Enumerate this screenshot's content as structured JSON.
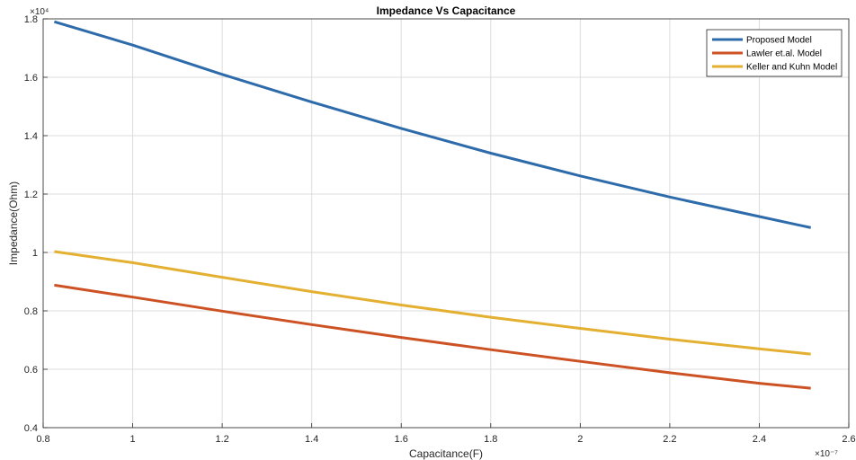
{
  "chart_data": {
    "type": "line",
    "title": "Impedance Vs Capacitance",
    "xlabel": "Capacitance(F)",
    "ylabel": "Impedance(Ohm)",
    "x_multiplier": "×10⁻⁷",
    "y_multiplier": "×10⁴",
    "xlim": [
      0.8,
      2.6
    ],
    "ylim": [
      0.4,
      1.8
    ],
    "x_ticks": [
      0.8,
      1.0,
      1.2,
      1.4,
      1.6,
      1.8,
      2.0,
      2.2,
      2.4,
      2.6
    ],
    "x_tick_labels": [
      "0.8",
      "1",
      "1.2",
      "1.4",
      "1.6",
      "1.8",
      "2",
      "2.2",
      "2.4",
      "2.6"
    ],
    "y_ticks": [
      0.4,
      0.6,
      0.8,
      1.0,
      1.2,
      1.4,
      1.6,
      1.8
    ],
    "y_tick_labels": [
      "0.4",
      "0.6",
      "0.8",
      "1",
      "1.2",
      "1.4",
      "1.6",
      "1.8"
    ],
    "grid": true,
    "legend_position": "top-right",
    "x": [
      0.825,
      1.0,
      1.2,
      1.4,
      1.6,
      1.8,
      2.0,
      2.2,
      2.4,
      2.515
    ],
    "series": [
      {
        "name": "Proposed Model",
        "color": "#2e6bab",
        "values": [
          1.79,
          1.71,
          1.61,
          1.515,
          1.425,
          1.34,
          1.262,
          1.19,
          1.123,
          1.085
        ]
      },
      {
        "name": "Lawler et.al. Model",
        "color": "#cc5224",
        "values": [
          0.888,
          0.847,
          0.799,
          0.753,
          0.709,
          0.667,
          0.627,
          0.588,
          0.552,
          0.535
        ]
      },
      {
        "name": "Keller and Kuhn Model",
        "color": "#e3b032",
        "values": [
          1.003,
          0.965,
          0.915,
          0.866,
          0.82,
          0.778,
          0.74,
          0.703,
          0.67,
          0.652
        ]
      }
    ]
  }
}
